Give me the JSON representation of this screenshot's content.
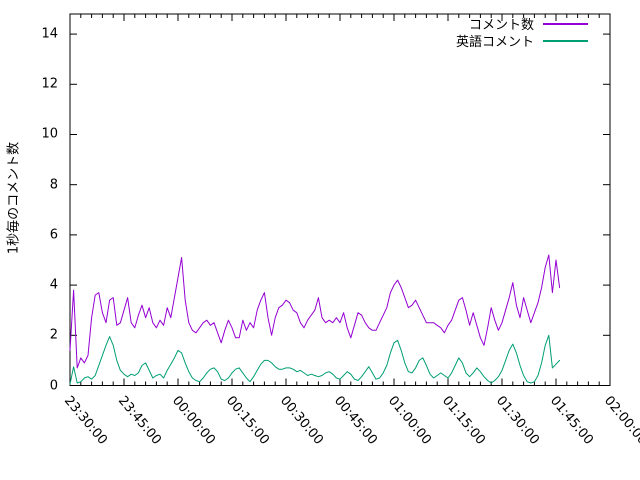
{
  "figure": {
    "background_color": "#ffffff",
    "text_color": "#000000",
    "axis_color": "#000000"
  },
  "chart_data": {
    "type": "line",
    "title": "",
    "xlabel": "",
    "ylabel": "1秒毎のコメント数",
    "x_axis": {
      "start_label": "23:30:00",
      "end_label": "02:00:00",
      "tick_labels": [
        "23:30:00",
        "23:45:00",
        "00:00:00",
        "00:15:00",
        "00:30:00",
        "00:45:00",
        "01:00:00",
        "01:15:00",
        "01:30:00",
        "01:45:00",
        "02:00:00"
      ],
      "major_tick_interval_minutes": 15,
      "minor_tick_interval_minutes": 3,
      "range_minutes": [
        0,
        150
      ],
      "tick_label_rotation_deg": 50
    },
    "y_axis": {
      "ticks": [
        0,
        2,
        4,
        6,
        8,
        10,
        12,
        14
      ],
      "ylim": [
        0,
        14.8
      ]
    },
    "grid": false,
    "legend_position": "top-right-inside",
    "sample_interval_minutes": 1,
    "series_start_time": "23:30:00",
    "series": [
      {
        "name": "コメント数",
        "color": "#9400d3",
        "values": [
          1.4,
          3.8,
          0.7,
          1.1,
          0.9,
          1.2,
          2.7,
          3.6,
          3.7,
          2.9,
          2.5,
          3.4,
          3.5,
          2.4,
          2.5,
          3.0,
          3.5,
          2.5,
          2.3,
          2.8,
          3.2,
          2.7,
          3.1,
          2.5,
          2.3,
          2.6,
          2.4,
          3.1,
          2.7,
          3.5,
          4.3,
          5.1,
          3.4,
          2.5,
          2.2,
          2.1,
          2.3,
          2.5,
          2.6,
          2.4,
          2.5,
          2.1,
          1.7,
          2.2,
          2.6,
          2.3,
          1.9,
          1.9,
          2.6,
          2.2,
          2.5,
          2.3,
          3.0,
          3.4,
          3.7,
          2.7,
          2.0,
          2.7,
          3.1,
          3.2,
          3.4,
          3.3,
          3.0,
          2.9,
          2.5,
          2.3,
          2.6,
          2.8,
          3.0,
          3.5,
          2.7,
          2.5,
          2.6,
          2.5,
          2.7,
          2.5,
          2.9,
          2.3,
          1.9,
          2.4,
          2.9,
          2.8,
          2.5,
          2.3,
          2.2,
          2.2,
          2.5,
          2.8,
          3.1,
          3.7,
          4.0,
          4.2,
          3.9,
          3.5,
          3.1,
          3.2,
          3.4,
          3.1,
          2.8,
          2.5,
          2.5,
          2.5,
          2.4,
          2.3,
          2.1,
          2.4,
          2.6,
          3.0,
          3.4,
          3.5,
          3.0,
          2.4,
          2.9,
          2.4,
          1.9,
          1.6,
          2.3,
          3.1,
          2.6,
          2.2,
          2.5,
          3.0,
          3.5,
          4.1,
          3.2,
          2.7,
          3.5,
          3.0,
          2.5,
          2.9,
          3.3,
          3.9,
          4.7,
          5.2,
          3.7,
          5.0,
          3.9
        ]
      },
      {
        "name": "英語コメント",
        "color": "#009e73",
        "values": [
          0.05,
          0.75,
          0.1,
          0.15,
          0.3,
          0.35,
          0.25,
          0.4,
          0.8,
          1.2,
          1.6,
          1.95,
          1.6,
          1.0,
          0.6,
          0.45,
          0.35,
          0.45,
          0.4,
          0.5,
          0.8,
          0.9,
          0.6,
          0.3,
          0.4,
          0.45,
          0.3,
          0.6,
          0.85,
          1.1,
          1.4,
          1.3,
          0.9,
          0.55,
          0.3,
          0.2,
          0.15,
          0.3,
          0.5,
          0.65,
          0.7,
          0.55,
          0.25,
          0.2,
          0.3,
          0.5,
          0.65,
          0.7,
          0.5,
          0.3,
          0.15,
          0.35,
          0.6,
          0.85,
          1.0,
          1.0,
          0.9,
          0.75,
          0.65,
          0.65,
          0.7,
          0.7,
          0.65,
          0.55,
          0.6,
          0.5,
          0.4,
          0.45,
          0.4,
          0.35,
          0.4,
          0.5,
          0.55,
          0.45,
          0.3,
          0.25,
          0.4,
          0.55,
          0.45,
          0.25,
          0.2,
          0.35,
          0.55,
          0.75,
          0.5,
          0.25,
          0.3,
          0.5,
          0.8,
          1.3,
          1.7,
          1.8,
          1.4,
          0.9,
          0.55,
          0.5,
          0.7,
          1.0,
          1.1,
          0.8,
          0.45,
          0.3,
          0.4,
          0.5,
          0.4,
          0.3,
          0.5,
          0.8,
          1.1,
          0.9,
          0.5,
          0.35,
          0.5,
          0.7,
          0.55,
          0.35,
          0.2,
          0.1,
          0.2,
          0.35,
          0.6,
          1.0,
          1.4,
          1.65,
          1.3,
          0.8,
          0.4,
          0.15,
          0.1,
          0.15,
          0.4,
          0.9,
          1.6,
          2.0,
          0.7,
          0.85,
          1.0
        ]
      }
    ]
  }
}
